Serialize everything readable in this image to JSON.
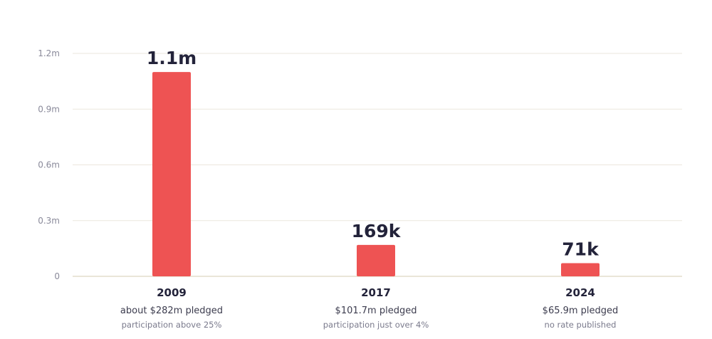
{
  "chart_data": {
    "type": "bar",
    "categories": [
      "2009",
      "2017",
      "2024"
    ],
    "values": [
      1100000,
      169000,
      71000
    ],
    "value_labels": [
      "1.1m",
      "169k",
      "71k"
    ],
    "notes": [
      "about $282m pledged",
      "$101.7m pledged",
      "$65.9m pledged"
    ],
    "sub_notes": [
      "participation above 25%",
      "participation just over 4%",
      "no rate published"
    ],
    "ylim": [
      0,
      1200000
    ],
    "yticks": [
      0,
      300000,
      600000,
      900000,
      1200000
    ],
    "ytick_labels": [
      "0",
      "0.3m",
      "0.6m",
      "0.9m",
      "1.2m"
    ],
    "grid": true,
    "colors": {
      "bar": "#ee5353",
      "grid": "#ebe7dd",
      "baseline": "#e4ddcc",
      "text_dark": "#23233a",
      "text_muted": "#8a8a9a"
    }
  }
}
